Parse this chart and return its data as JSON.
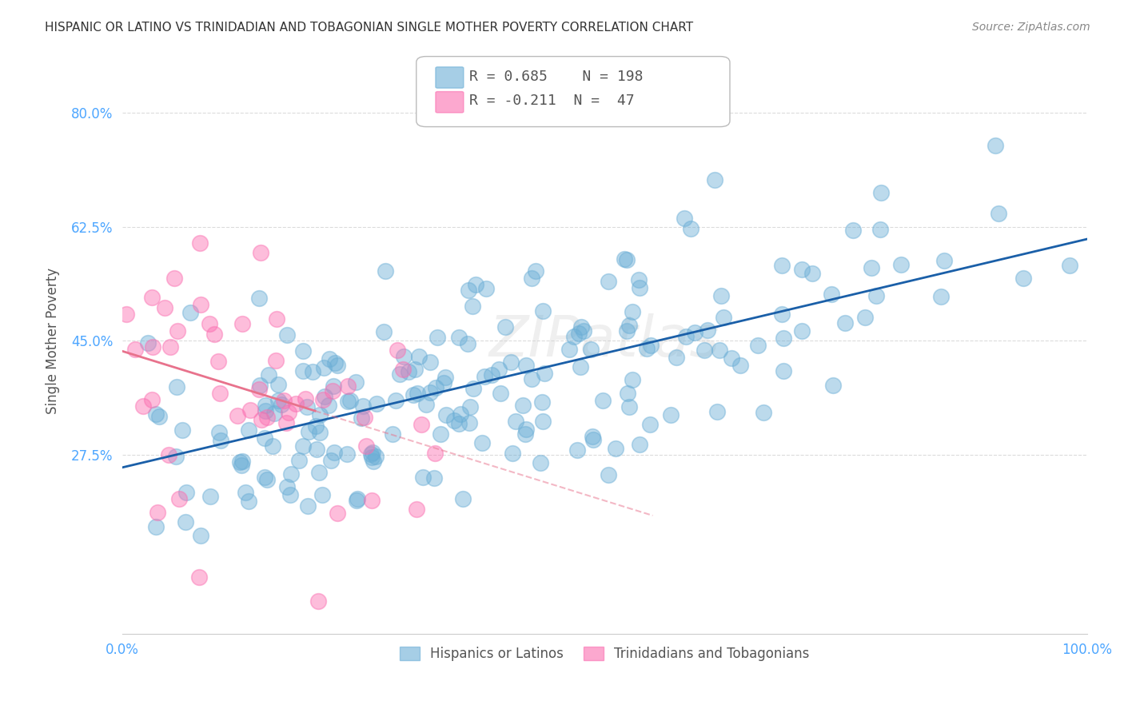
{
  "title": "HISPANIC OR LATINO VS TRINIDADIAN AND TOBAGONIAN SINGLE MOTHER POVERTY CORRELATION CHART",
  "source": "Source: ZipAtlas.com",
  "xlabel": "",
  "ylabel": "Single Mother Poverty",
  "xlim": [
    0,
    1
  ],
  "ylim": [
    0,
    0.9
  ],
  "yticks": [
    0.275,
    0.45,
    0.625,
    0.8
  ],
  "ytick_labels": [
    "27.5%",
    "45.0%",
    "62.5%",
    "80.0%"
  ],
  "xticks": [
    0.0,
    0.2,
    0.4,
    0.6,
    0.8,
    1.0
  ],
  "xtick_labels": [
    "0.0%",
    "",
    "",
    "",
    "",
    "100.0%"
  ],
  "blue_R": 0.685,
  "blue_N": 198,
  "pink_R": -0.211,
  "pink_N": 47,
  "blue_color": "#6baed6",
  "pink_color": "#fb6eb0",
  "blue_line_color": "#1a5fa8",
  "pink_line_color": "#e8728c",
  "watermark": "ZIPatlas",
  "background_color": "#ffffff",
  "grid_color": "#cccccc",
  "label_color": "#4da6ff",
  "title_color": "#333333"
}
